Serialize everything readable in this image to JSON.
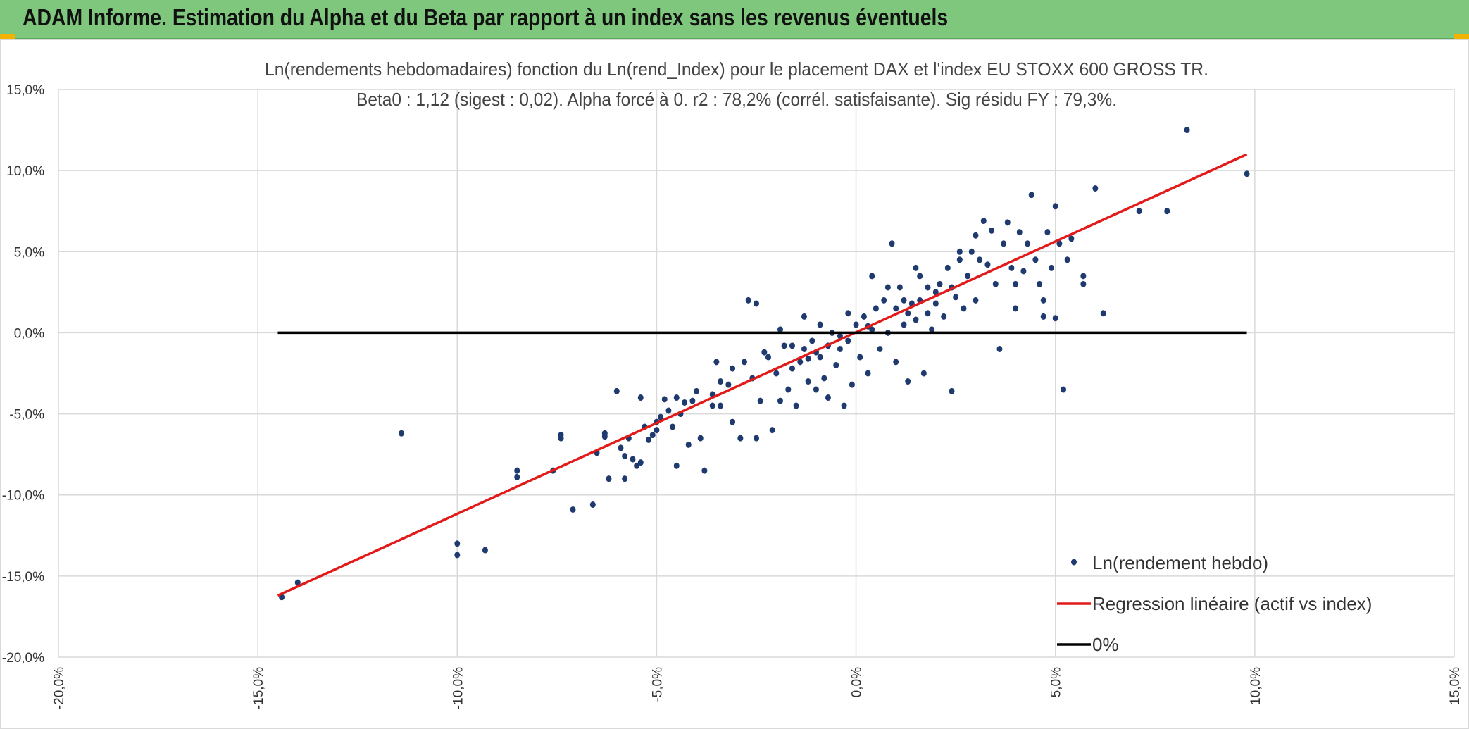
{
  "header": {
    "title": "ADAM Informe. Estimation du Alpha et du Beta par rapport à un index sans les revenus éventuels",
    "bg_color": "#7ec77c"
  },
  "chart_data": {
    "type": "scatter",
    "title": "Ln(rendements hebdomadaires) fonction du Ln(rend_Index) pour le placement DAX et l'index EU STOXX 600 GROSS TR.",
    "subtitle": "Beta0 : 1,12 (sigest : 0,02). Alpha forcé à 0. r2 : 78,2% (corrél. satisfaisante). Sig résidu FY : 79,3%.",
    "xlabel": "",
    "ylabel": "",
    "xlim": [
      -0.2,
      0.15
    ],
    "ylim": [
      -0.2,
      0.15
    ],
    "x_ticks": [
      -0.2,
      -0.15,
      -0.1,
      -0.05,
      0.0,
      0.05,
      0.1,
      0.15
    ],
    "y_ticks": [
      -0.2,
      -0.15,
      -0.1,
      -0.05,
      0.0,
      0.05,
      0.1,
      0.15
    ],
    "x_tick_labels": [
      "-20,0%",
      "-15,0%",
      "-10,0%",
      "-5,0%",
      "0,0%",
      "5,0%",
      "10,0%",
      "15,0%"
    ],
    "y_tick_labels": [
      "-20,0%",
      "-15,0%",
      "-10,0%",
      "-5,0%",
      "0,0%",
      "5,0%",
      "10,0%",
      "15,0%"
    ],
    "grid": true,
    "legend_position": "bottom-right",
    "beta": 1.12,
    "series": [
      {
        "name": "Ln(rendement hebdo)",
        "kind": "scatter",
        "color": "#1f3a6e",
        "points": [
          [
            -0.144,
            -0.163
          ],
          [
            -0.14,
            -0.154
          ],
          [
            -0.114,
            -0.062
          ],
          [
            -0.1,
            -0.13
          ],
          [
            -0.1,
            -0.137
          ],
          [
            -0.093,
            -0.134
          ],
          [
            -0.085,
            -0.085
          ],
          [
            -0.085,
            -0.089
          ],
          [
            -0.076,
            -0.085
          ],
          [
            -0.074,
            -0.063
          ],
          [
            -0.074,
            -0.065
          ],
          [
            -0.071,
            -0.109
          ],
          [
            -0.066,
            -0.106
          ],
          [
            -0.065,
            -0.074
          ],
          [
            -0.063,
            -0.062
          ],
          [
            -0.063,
            -0.064
          ],
          [
            -0.062,
            -0.09
          ],
          [
            -0.06,
            -0.036
          ],
          [
            -0.059,
            -0.071
          ],
          [
            -0.058,
            -0.09
          ],
          [
            -0.058,
            -0.076
          ],
          [
            -0.056,
            -0.078
          ],
          [
            -0.055,
            -0.082
          ],
          [
            -0.054,
            -0.08
          ],
          [
            -0.054,
            -0.04
          ],
          [
            -0.052,
            -0.066
          ],
          [
            -0.051,
            -0.063
          ],
          [
            -0.05,
            -0.055
          ],
          [
            -0.049,
            -0.052
          ],
          [
            -0.048,
            -0.041
          ],
          [
            -0.046,
            -0.058
          ],
          [
            -0.045,
            -0.082
          ],
          [
            -0.044,
            -0.05
          ],
          [
            -0.043,
            -0.043
          ],
          [
            -0.042,
            -0.069
          ],
          [
            -0.04,
            -0.036
          ],
          [
            -0.039,
            -0.065
          ],
          [
            -0.038,
            -0.085
          ],
          [
            -0.036,
            -0.045
          ],
          [
            -0.035,
            -0.018
          ],
          [
            -0.034,
            -0.045
          ],
          [
            -0.032,
            -0.032
          ],
          [
            -0.031,
            -0.055
          ],
          [
            -0.029,
            -0.065
          ],
          [
            -0.027,
            0.02
          ],
          [
            -0.026,
            -0.028
          ],
          [
            -0.025,
            -0.065
          ],
          [
            -0.025,
            0.018
          ],
          [
            -0.024,
            -0.042
          ],
          [
            -0.022,
            -0.015
          ],
          [
            -0.021,
            -0.06
          ],
          [
            -0.02,
            -0.025
          ],
          [
            -0.019,
            -0.042
          ],
          [
            -0.018,
            -0.008
          ],
          [
            -0.017,
            -0.035
          ],
          [
            -0.016,
            -0.022
          ],
          [
            -0.015,
            -0.045
          ],
          [
            -0.014,
            -0.018
          ],
          [
            -0.013,
            -0.01
          ],
          [
            -0.012,
            -0.03
          ],
          [
            -0.011,
            -0.005
          ],
          [
            -0.01,
            -0.035
          ],
          [
            -0.009,
            -0.015
          ],
          [
            -0.008,
            -0.028
          ],
          [
            -0.007,
            -0.04
          ],
          [
            -0.006,
            0.0
          ],
          [
            -0.005,
            -0.02
          ],
          [
            -0.004,
            -0.01
          ],
          [
            -0.003,
            -0.045
          ],
          [
            -0.002,
            -0.005
          ],
          [
            -0.001,
            -0.032
          ],
          [
            0.0,
            0.005
          ],
          [
            0.001,
            -0.015
          ],
          [
            0.002,
            0.01
          ],
          [
            0.003,
            -0.025
          ],
          [
            0.004,
            0.002
          ],
          [
            0.005,
            0.015
          ],
          [
            0.006,
            -0.01
          ],
          [
            0.007,
            0.02
          ],
          [
            0.008,
            0.0
          ],
          [
            0.009,
            0.055
          ],
          [
            0.01,
            -0.018
          ],
          [
            0.011,
            0.028
          ],
          [
            0.012,
            0.005
          ],
          [
            0.013,
            -0.03
          ],
          [
            0.014,
            0.018
          ],
          [
            0.015,
            0.008
          ],
          [
            0.016,
            0.035
          ],
          [
            0.017,
            -0.025
          ],
          [
            0.018,
            0.012
          ],
          [
            0.019,
            0.002
          ],
          [
            0.02,
            0.025
          ],
          [
            0.021,
            0.03
          ],
          [
            0.022,
            0.01
          ],
          [
            0.023,
            0.04
          ],
          [
            0.024,
            -0.036
          ],
          [
            0.025,
            0.022
          ],
          [
            0.026,
            0.045
          ],
          [
            0.027,
            0.015
          ],
          [
            0.028,
            0.035
          ],
          [
            0.029,
            0.05
          ],
          [
            0.03,
            0.02
          ],
          [
            0.031,
            0.045
          ],
          [
            0.032,
            0.069
          ],
          [
            0.033,
            0.042
          ],
          [
            0.034,
            0.063
          ],
          [
            0.035,
            0.03
          ],
          [
            0.036,
            -0.01
          ],
          [
            0.037,
            0.055
          ],
          [
            0.038,
            0.068
          ],
          [
            0.039,
            0.04
          ],
          [
            0.04,
            0.015
          ],
          [
            0.041,
            0.062
          ],
          [
            0.042,
            0.038
          ],
          [
            0.043,
            0.055
          ],
          [
            0.044,
            0.085
          ],
          [
            0.045,
            0.045
          ],
          [
            0.046,
            0.03
          ],
          [
            0.047,
            0.01
          ],
          [
            0.048,
            0.062
          ],
          [
            0.049,
            0.04
          ],
          [
            0.05,
            0.078
          ],
          [
            0.051,
            0.055
          ],
          [
            0.052,
            -0.035
          ],
          [
            0.053,
            0.045
          ],
          [
            0.054,
            0.058
          ],
          [
            0.057,
            0.03
          ],
          [
            0.057,
            0.035
          ],
          [
            0.06,
            0.089
          ],
          [
            0.062,
            0.012
          ],
          [
            0.071,
            0.075
          ],
          [
            0.078,
            0.075
          ],
          [
            0.083,
            0.125
          ],
          [
            0.098,
            0.098
          ],
          [
            0.05,
            0.009
          ],
          [
            0.047,
            0.02
          ],
          [
            0.04,
            0.03
          ],
          [
            0.03,
            0.06
          ],
          [
            0.026,
            0.05
          ],
          [
            0.012,
            0.02
          ],
          [
            0.015,
            0.04
          ],
          [
            0.018,
            0.028
          ],
          [
            0.008,
            0.028
          ],
          [
            0.004,
            0.035
          ],
          [
            -0.002,
            0.012
          ],
          [
            -0.009,
            0.005
          ],
          [
            -0.013,
            0.01
          ],
          [
            -0.016,
            -0.008
          ],
          [
            -0.019,
            0.002
          ],
          [
            -0.023,
            -0.012
          ],
          [
            -0.028,
            -0.018
          ],
          [
            -0.031,
            -0.022
          ],
          [
            -0.034,
            -0.03
          ],
          [
            -0.036,
            -0.038
          ],
          [
            -0.041,
            -0.042
          ],
          [
            -0.045,
            -0.04
          ],
          [
            -0.047,
            -0.048
          ],
          [
            -0.05,
            -0.06
          ],
          [
            -0.053,
            -0.058
          ],
          [
            -0.057,
            -0.065
          ],
          [
            0.01,
            0.015
          ],
          [
            0.013,
            0.012
          ],
          [
            0.016,
            0.02
          ],
          [
            0.02,
            0.018
          ],
          [
            0.024,
            0.028
          ],
          [
            -0.004,
            -0.002
          ],
          [
            -0.007,
            -0.008
          ],
          [
            -0.01,
            -0.012
          ],
          [
            -0.012,
            -0.016
          ],
          [
            0.003,
            0.004
          ]
        ]
      },
      {
        "name": "Regression linéaire (actif vs index)",
        "kind": "line",
        "color": "#e31a1a",
        "points": [
          [
            -0.145,
            -0.162
          ],
          [
            0.098,
            0.11
          ]
        ]
      },
      {
        "name": "0%",
        "kind": "line",
        "color": "#000000",
        "points": [
          [
            -0.145,
            0.0
          ],
          [
            0.098,
            0.0
          ]
        ]
      }
    ]
  }
}
